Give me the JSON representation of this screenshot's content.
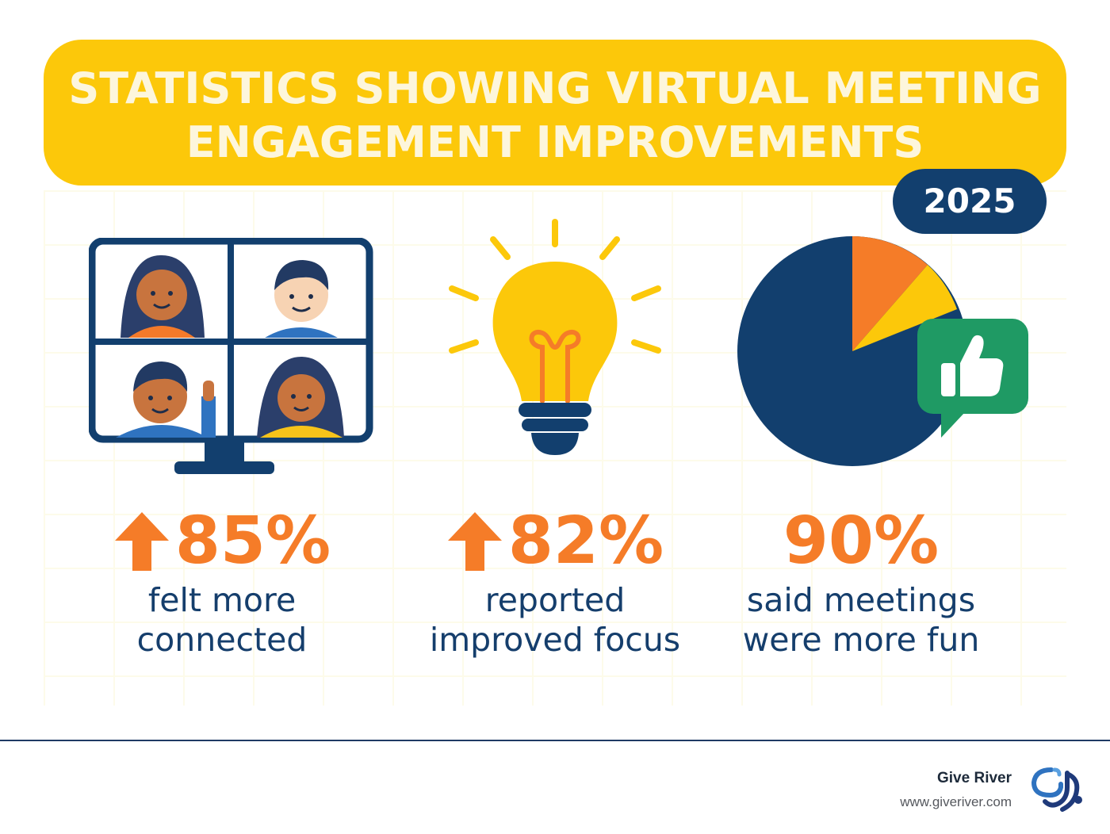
{
  "header": {
    "title_line1": "STATISTICS SHOWING VIRTUAL MEETING",
    "title_line2": "ENGAGEMENT IMPROVEMENTS",
    "year": "2025"
  },
  "stats": [
    {
      "value": "85%",
      "description_line1": "felt more",
      "description_line2": "connected",
      "icon": "up-arrow-icon",
      "illustration": "video-call-monitor-icon"
    },
    {
      "value": "82%",
      "description_line1": "reported",
      "description_line2": "improved focus",
      "icon": "up-arrow-icon",
      "illustration": "lightbulb-icon"
    },
    {
      "value": "90%",
      "description_line1": "said meetings",
      "description_line2": "were more fun",
      "illustration": "pie-chart-thumbs-up-icon"
    }
  ],
  "footer": {
    "brand_name": "Give River",
    "url": "www.giveriver.com",
    "logo": "give-river-logo"
  },
  "colors": {
    "yellow": "#fcc80a",
    "navy": "#123f6e",
    "orange": "#f57c28",
    "green": "#1f9a64"
  }
}
